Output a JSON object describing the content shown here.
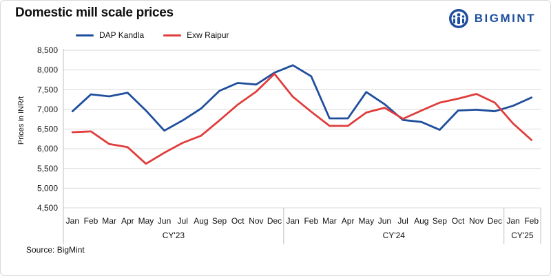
{
  "chart_data": {
    "type": "line",
    "title": "Domestic mill scale prices",
    "ylabel": "Prices in INR/t",
    "xlabel": "",
    "ylim": [
      4500,
      8500
    ],
    "yticks": [
      4500,
      5000,
      5500,
      6000,
      6500,
      7000,
      7500,
      8000,
      8500
    ],
    "ytick_labels": [
      "4,500",
      "5,000",
      "5,500",
      "6,000",
      "6,500",
      "7,000",
      "7,500",
      "8,000",
      "8,500"
    ],
    "grid": true,
    "legend_position": "top-left",
    "categories": [
      "Jan",
      "Feb",
      "Mar",
      "Apr",
      "May",
      "Jun",
      "Jul",
      "Aug",
      "Sep",
      "Oct",
      "Nov",
      "Dec",
      "Jan",
      "Feb",
      "Mar",
      "Apr",
      "May",
      "Jun",
      "Jul",
      "Aug",
      "Sep",
      "Oct",
      "Nov",
      "Dec",
      "Jan",
      "Feb"
    ],
    "groups": [
      {
        "label": "CY'23",
        "count": 12
      },
      {
        "label": "CY'24",
        "count": 12
      },
      {
        "label": "CY'25",
        "count": 2
      }
    ],
    "series": [
      {
        "name": "DAP Kandla",
        "color": "#1f4e9c",
        "values": [
          6950,
          7380,
          7330,
          7420,
          6970,
          6460,
          6720,
          7020,
          7470,
          7670,
          7630,
          7930,
          8120,
          7840,
          6770,
          6770,
          7440,
          7130,
          6730,
          6680,
          6480,
          6970,
          6990,
          6950,
          7090,
          7300
        ]
      },
      {
        "name": "Exw Raipur",
        "color": "#e03c3c",
        "values": [
          6420,
          6440,
          6120,
          6040,
          5620,
          5900,
          6150,
          6330,
          6720,
          7120,
          7450,
          7900,
          7320,
          6940,
          6580,
          6580,
          6920,
          7040,
          6760,
          6970,
          7170,
          7270,
          7390,
          7170,
          6640,
          6220
        ]
      }
    ]
  },
  "source": "Source: BigMint",
  "logo": {
    "text": "BIGMINT",
    "color": "#1e4f9c"
  }
}
